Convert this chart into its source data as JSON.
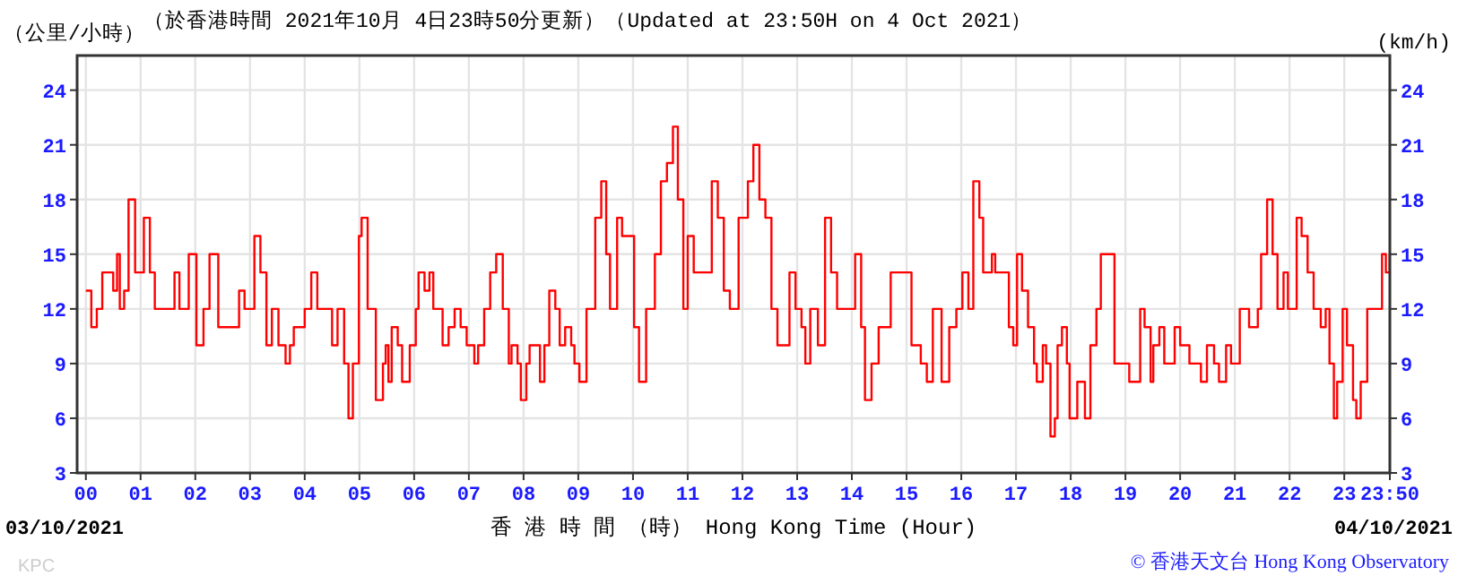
{
  "chart_data": {
    "type": "step",
    "title": "（於香港時間 2021年10月 4日23時50分更新）（Updated at 23:50H on 4 Oct 2021）",
    "ylabel": "（公里/小時）",
    "y2label": "(km/h)",
    "xlabel": "香 港 時 間 （時） Hong Kong Time (Hour)",
    "annotations": [
      "03/10/2021",
      "04/10/2021",
      "KPC",
      "© 香港天文台 Hong Kong Observatory"
    ],
    "xlim": [
      -0.16,
      23.833
    ],
    "xticks": [
      {
        "value": 0,
        "label": "00"
      },
      {
        "value": 1,
        "label": "01"
      },
      {
        "value": 2,
        "label": "02"
      },
      {
        "value": 3,
        "label": "03"
      },
      {
        "value": 4,
        "label": "04"
      },
      {
        "value": 5,
        "label": "05"
      },
      {
        "value": 6,
        "label": "06"
      },
      {
        "value": 7,
        "label": "07"
      },
      {
        "value": 8,
        "label": "08"
      },
      {
        "value": 9,
        "label": "09"
      },
      {
        "value": 10,
        "label": "10"
      },
      {
        "value": 11,
        "label": "11"
      },
      {
        "value": 12,
        "label": "12"
      },
      {
        "value": 13,
        "label": "13"
      },
      {
        "value": 14,
        "label": "14"
      },
      {
        "value": 15,
        "label": "15"
      },
      {
        "value": 16,
        "label": "16"
      },
      {
        "value": 17,
        "label": "17"
      },
      {
        "value": 18,
        "label": "18"
      },
      {
        "value": 19,
        "label": "19"
      },
      {
        "value": 20,
        "label": "20"
      },
      {
        "value": 21,
        "label": "21"
      },
      {
        "value": 22,
        "label": "22"
      },
      {
        "value": 23,
        "label": "23"
      },
      {
        "value": 23.833,
        "label": "23:50"
      }
    ],
    "ylim": [
      3,
      25.9
    ],
    "yticks": [
      3,
      6,
      9,
      12,
      15,
      18,
      21,
      24
    ],
    "y2lim": [
      3,
      25.9
    ],
    "y2ticks": [
      3,
      6,
      9,
      12,
      15,
      18,
      21,
      24
    ],
    "grid": true,
    "series": [
      {
        "color": "#ff0000",
        "x": [
          0,
          0.1,
          0.2,
          0.3,
          0.5,
          0.57,
          0.62,
          0.7,
          0.78,
          0.9,
          1.06,
          1.17,
          1.26,
          1.55,
          1.62,
          1.71,
          1.88,
          2.02,
          2.15,
          2.26,
          2.42,
          2.7,
          2.8,
          2.9,
          3.08,
          3.19,
          3.3,
          3.4,
          3.52,
          3.65,
          3.73,
          3.8,
          4.0,
          4.12,
          4.23,
          4.42,
          4.5,
          4.6,
          4.72,
          4.8,
          4.88,
          4.99,
          5.04,
          5.15,
          5.3,
          5.43,
          5.48,
          5.53,
          5.59,
          5.7,
          5.78,
          5.92,
          6.03,
          6.08,
          6.19,
          6.28,
          6.35,
          6.52,
          6.63,
          6.74,
          6.85,
          6.96,
          7.1,
          7.17,
          7.28,
          7.39,
          7.5,
          7.62,
          7.73,
          7.78,
          7.89,
          7.95,
          8.05,
          8.11,
          8.22,
          8.3,
          8.38,
          8.47,
          8.58,
          8.66,
          8.76,
          8.87,
          8.93,
          9.02,
          9.15,
          9.31,
          9.42,
          9.51,
          9.58,
          9.71,
          9.8,
          10.02,
          10.11,
          10.24,
          10.4,
          10.51,
          10.62,
          10.73,
          10.82,
          10.92,
          11.0,
          11.11,
          11.31,
          11.44,
          11.55,
          11.66,
          11.77,
          11.93,
          12.1,
          12.2,
          12.31,
          12.42,
          12.53,
          12.64,
          12.75,
          12.86,
          12.97,
          13.08,
          13.15,
          13.24,
          13.38,
          13.51,
          13.62,
          13.73,
          13.95,
          14.06,
          14.17,
          14.24,
          14.36,
          14.49,
          14.71,
          14.93,
          15.09,
          15.26,
          15.37,
          15.48,
          15.64,
          15.78,
          15.91,
          16.02,
          16.13,
          16.22,
          16.33,
          16.4,
          16.56,
          16.62,
          16.78,
          16.87,
          16.95,
          17.02,
          17.11,
          17.22,
          17.33,
          17.38,
          17.49,
          17.55,
          17.63,
          17.71,
          17.76,
          17.84,
          17.93,
          17.98,
          18.12,
          18.26,
          18.36,
          18.47,
          18.55,
          18.66,
          18.8,
          19.07,
          19.18,
          19.27,
          19.35,
          19.46,
          19.51,
          19.62,
          19.71,
          19.9,
          20.0,
          20.17,
          20.38,
          20.49,
          20.62,
          20.71,
          20.84,
          20.93,
          21.09,
          21.26,
          21.42,
          21.48,
          21.59,
          21.69,
          21.78,
          21.89,
          21.97,
          22.13,
          22.22,
          22.33,
          22.44,
          22.57,
          22.66,
          22.73,
          22.81,
          22.87,
          22.97,
          23.05,
          23.16,
          23.22,
          23.3,
          23.42,
          23.69,
          23.76,
          23.83
        ],
        "values": [
          13,
          11,
          12,
          14,
          13,
          15,
          12,
          13,
          18,
          14,
          17,
          14,
          12,
          12,
          14,
          12,
          15,
          10,
          12,
          15,
          11,
          11,
          13,
          12,
          16,
          14,
          10,
          12,
          10,
          9,
          10,
          11,
          12,
          14,
          12,
          12,
          10,
          12,
          9,
          6,
          9,
          16,
          17,
          12,
          7,
          9,
          10,
          8,
          11,
          10,
          8,
          10,
          12,
          14,
          13,
          14,
          12,
          10,
          11,
          12,
          11,
          10,
          9,
          10,
          12,
          14,
          15,
          12,
          9,
          10,
          9,
          7,
          9,
          10,
          10,
          8,
          10,
          13,
          12,
          10,
          11,
          10,
          9,
          8,
          12,
          17,
          19,
          15,
          12,
          17,
          16,
          11,
          8,
          12,
          15,
          19,
          20,
          22,
          18,
          12,
          16,
          14,
          14,
          19,
          17,
          13,
          12,
          17,
          19,
          21,
          18,
          17,
          12,
          10,
          10,
          14,
          12,
          11,
          9,
          12,
          10,
          17,
          14,
          12,
          12,
          15,
          11,
          7,
          9,
          11,
          14,
          14,
          10,
          9,
          8,
          12,
          8,
          11,
          12,
          14,
          12,
          19,
          17,
          14,
          15,
          14,
          14,
          11,
          10,
          15,
          13,
          11,
          9,
          8,
          10,
          9,
          5,
          6,
          10,
          11,
          9,
          6,
          8,
          6,
          10,
          12,
          15,
          15,
          9,
          8,
          8,
          12,
          11,
          8,
          10,
          11,
          9,
          11,
          10,
          9,
          8,
          10,
          9,
          8,
          10,
          9,
          12,
          11,
          12,
          15,
          18,
          15,
          12,
          14,
          12,
          17,
          16,
          14,
          12,
          11,
          12,
          9,
          6,
          8,
          12,
          10,
          7,
          6,
          8,
          12,
          15,
          14,
          15
        ]
      }
    ]
  }
}
